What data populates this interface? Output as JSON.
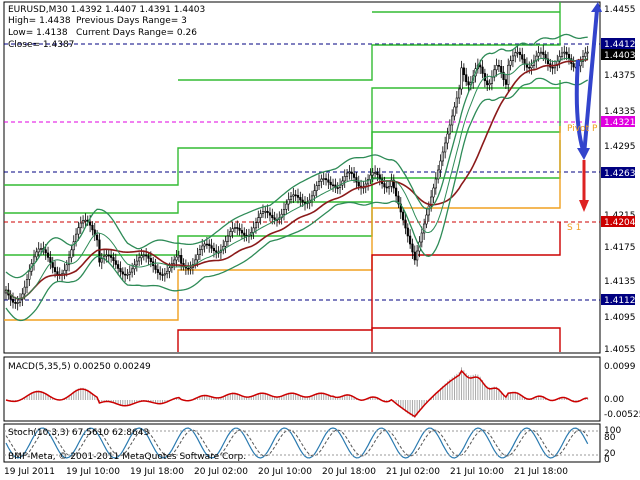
{
  "header": {
    "symbol_line": "EURUSD,M30  1.4392 1.4407 1.4391 1.4403",
    "high": "High= 1.4438",
    "low": "Low= 1.4138",
    "close": "Close= 1.4387",
    "prev_range": "Previous Days Range= 3",
    "curr_range": "Current Days Range= 0.26"
  },
  "price_axis": [
    "1.4455",
    "1.4375",
    "1.4335",
    "1.4295",
    "1.4215",
    "1.4175",
    "1.4135",
    "1.4095",
    "1.4055"
  ],
  "price_badges": [
    {
      "label": "1.4412",
      "color": "#000080"
    },
    {
      "label": "1.4403",
      "color": "#000000"
    },
    {
      "label": "1.4321",
      "color": "#e000e0"
    },
    {
      "label": "1.4263",
      "color": "#000080"
    },
    {
      "label": "1.4204",
      "color": "#cc0000"
    },
    {
      "label": "1.4112",
      "color": "#000080"
    }
  ],
  "pivot_labels": {
    "pivot": "Pivot P",
    "support": "S 1"
  },
  "macd": {
    "title": "MACD(5,35,5) 0.00250 0.00249",
    "axis": [
      "0.0099",
      "0.00",
      "-0.00525"
    ]
  },
  "stoch": {
    "title": "Stoch(10,3,3) 67.5610 62.8643",
    "axis": [
      "100",
      "80",
      "20",
      "0"
    ]
  },
  "copyright": "BMF-Meta, © 2001-2011 MetaQuotes Software Corp.",
  "time_axis": [
    "19 Jul 2011",
    "19 Jul 10:00",
    "19 Jul 18:00",
    "20 Jul 02:00",
    "20 Jul 10:00",
    "20 Jul 18:00",
    "21 Jul 02:00",
    "21 Jul 10:00",
    "21 Jul 18:00"
  ],
  "colors": {
    "bull": "#000000",
    "bear": "#000000",
    "ma": "#8b1a1a",
    "bands": "#2e8b57",
    "green_lines": "#33bb33",
    "orange": "#f0a020",
    "red": "#cc0000",
    "blue_arrow": "#3344cc",
    "red_arrow": "#dd2222"
  }
}
